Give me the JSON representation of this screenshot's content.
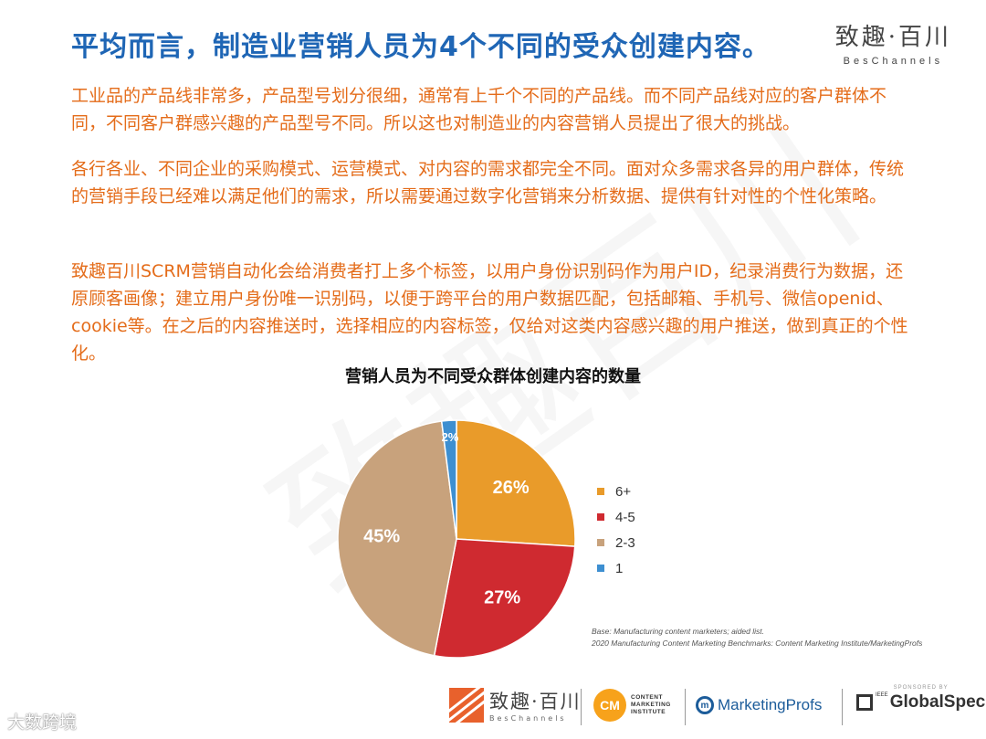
{
  "header": {
    "title": "平均而言，制造业营销人员为4个不同的受众创建内容。",
    "brand_cn": "致趣·百川",
    "brand_en": "BesChannels"
  },
  "paragraphs": [
    "工业品的产品线非常多，产品型号划分很细，通常有上千个不同的产品线。而不同产品线对应的客户群体不同，不同客户群感兴趣的产品型号不同。所以这也对制造业的内容营销人员提出了很大的挑战。",
    "各行各业、不同企业的采购模式、运营模式、对内容的需求都完全不同。面对众多需求各异的用户群体，传统的营销手段已经难以满足他们的需求，所以需要通过数字化营销来分析数据、提供有针对性的个性化策略。",
    "致趣百川SCRM营销自动化会给消费者打上多个标签，以用户身份识别码作为用户ID，纪录消费行为数据，还原顾客画像；建立用户身份唯一识别码，以便于跨平台的用户数据匹配，包括邮箱、手机号、微信openid、cookie等。在之后的内容推送时，选择相应的内容标签，仅给对这类内容感兴趣的用户推送，做到真正的个性化。"
  ],
  "chart_data": {
    "type": "pie",
    "title": "营销人员为不同受众群体创建内容的数量",
    "slices": [
      {
        "label": "6+",
        "value": 26,
        "display": "26%",
        "color": "#e99b2a"
      },
      {
        "label": "4-5",
        "value": 27,
        "display": "27%",
        "color": "#cf2a30"
      },
      {
        "label": "2-3",
        "value": 45,
        "display": "45%",
        "color": "#c8a27c"
      },
      {
        "label": "1",
        "value": 2,
        "display": "2%",
        "color": "#3d8fd1"
      }
    ],
    "legend_position": "right"
  },
  "source": {
    "line1": "Base: Manufacturing content marketers; aided list.",
    "line2": "2020 Manufacturing Content Marketing Benchmarks: Content Marketing Institute/MarketingProfs"
  },
  "footer": {
    "beschannels_cn": "致趣·百川",
    "beschannels_en": "BesChannels",
    "cmi_mark": "CM",
    "cmi_l1": "CONTENT",
    "cmi_l2": "MARKETING",
    "cmi_l3": "INSTITUTE",
    "mp_name": "MarketingProfs",
    "gs_sponsored": "SPONSORED BY",
    "gs_ieee": "IEEE",
    "gs_name": "GlobalSpec",
    "watermark": "大数跨境"
  }
}
